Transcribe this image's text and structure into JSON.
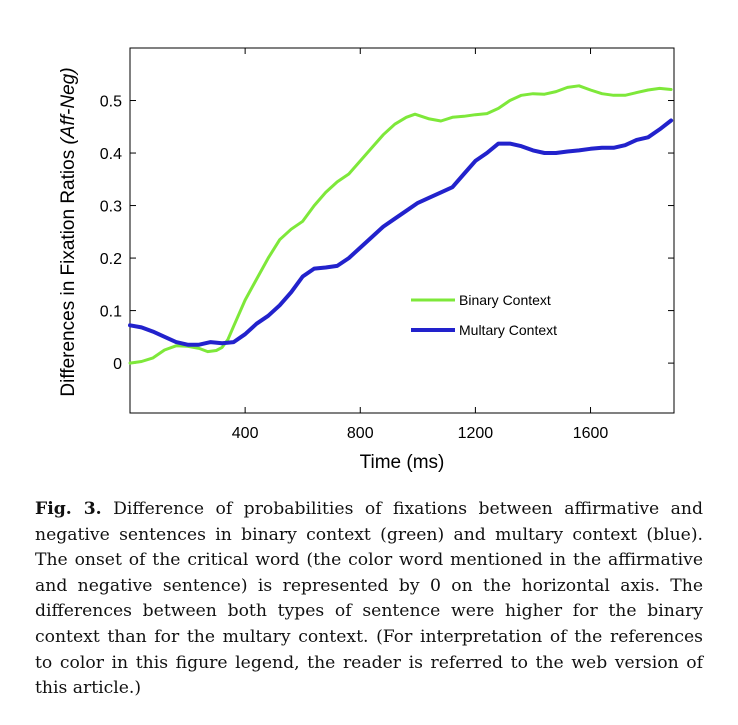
{
  "chart_data": {
    "type": "line",
    "ylabel": "Differences  in  Fixation Ratios  ",
    "ylabel_italic": "(Aff-Neg)",
    "xlabel": "Time (ms)",
    "xlim": [
      0,
      1890
    ],
    "ylim": [
      -0.095,
      0.6
    ],
    "x_ticks": [
      400,
      800,
      1200,
      1600
    ],
    "y_ticks": [
      0,
      0.1,
      0.2,
      0.3,
      0.4,
      0.5
    ],
    "y_tick_labels": [
      "0",
      "0.1",
      "0.2",
      "0.3",
      "0.4",
      "0.5"
    ],
    "grid": false,
    "legend_position": "center-right",
    "series": [
      {
        "name": "Binary Context",
        "color": "#7ee83a",
        "x": [
          0,
          40,
          80,
          120,
          160,
          200,
          240,
          270,
          300,
          320,
          340,
          360,
          400,
          440,
          480,
          520,
          560,
          600,
          640,
          680,
          720,
          760,
          800,
          840,
          880,
          920,
          960,
          990,
          1040,
          1080,
          1120,
          1160,
          1200,
          1240,
          1280,
          1320,
          1360,
          1400,
          1440,
          1480,
          1520,
          1560,
          1600,
          1640,
          1680,
          1720,
          1760,
          1800,
          1840,
          1880
        ],
        "y": [
          0.0,
          0.003,
          0.01,
          0.025,
          0.033,
          0.032,
          0.028,
          0.022,
          0.024,
          0.03,
          0.045,
          0.07,
          0.12,
          0.16,
          0.2,
          0.235,
          0.255,
          0.27,
          0.3,
          0.325,
          0.345,
          0.36,
          0.385,
          0.41,
          0.435,
          0.455,
          0.468,
          0.474,
          0.465,
          0.461,
          0.468,
          0.47,
          0.473,
          0.475,
          0.485,
          0.5,
          0.51,
          0.513,
          0.512,
          0.517,
          0.525,
          0.528,
          0.52,
          0.513,
          0.51,
          0.51,
          0.515,
          0.52,
          0.523,
          0.521
        ]
      },
      {
        "name": "Multary Context",
        "color": "#2222cc",
        "x": [
          0,
          40,
          80,
          120,
          160,
          200,
          240,
          280,
          320,
          360,
          400,
          440,
          480,
          520,
          560,
          600,
          640,
          680,
          720,
          760,
          800,
          840,
          880,
          920,
          960,
          1000,
          1040,
          1080,
          1120,
          1160,
          1200,
          1240,
          1280,
          1320,
          1360,
          1400,
          1440,
          1480,
          1520,
          1560,
          1600,
          1640,
          1680,
          1720,
          1760,
          1800,
          1840,
          1880
        ],
        "y": [
          0.072,
          0.068,
          0.06,
          0.05,
          0.04,
          0.035,
          0.035,
          0.04,
          0.038,
          0.04,
          0.055,
          0.075,
          0.09,
          0.11,
          0.135,
          0.165,
          0.18,
          0.182,
          0.185,
          0.2,
          0.22,
          0.24,
          0.26,
          0.275,
          0.29,
          0.305,
          0.315,
          0.325,
          0.335,
          0.36,
          0.385,
          0.4,
          0.418,
          0.418,
          0.413,
          0.405,
          0.4,
          0.4,
          0.403,
          0.405,
          0.408,
          0.41,
          0.41,
          0.415,
          0.425,
          0.43,
          0.445,
          0.462
        ]
      }
    ]
  },
  "caption": {
    "label": "Fig. 3.",
    "text": " Difference of probabilities of fixations between affirmative and negative sentences in binary context (green) and multary context (blue). The onset of the critical word (the color word mentioned in the affirmative and negative sentence) is represented by 0 on the horizontal axis. The differences between both types of sentence were higher for the binary context than for the multary context. (For interpretation of the references to color in this figure legend, the reader is referred to the web version of this article.)"
  }
}
